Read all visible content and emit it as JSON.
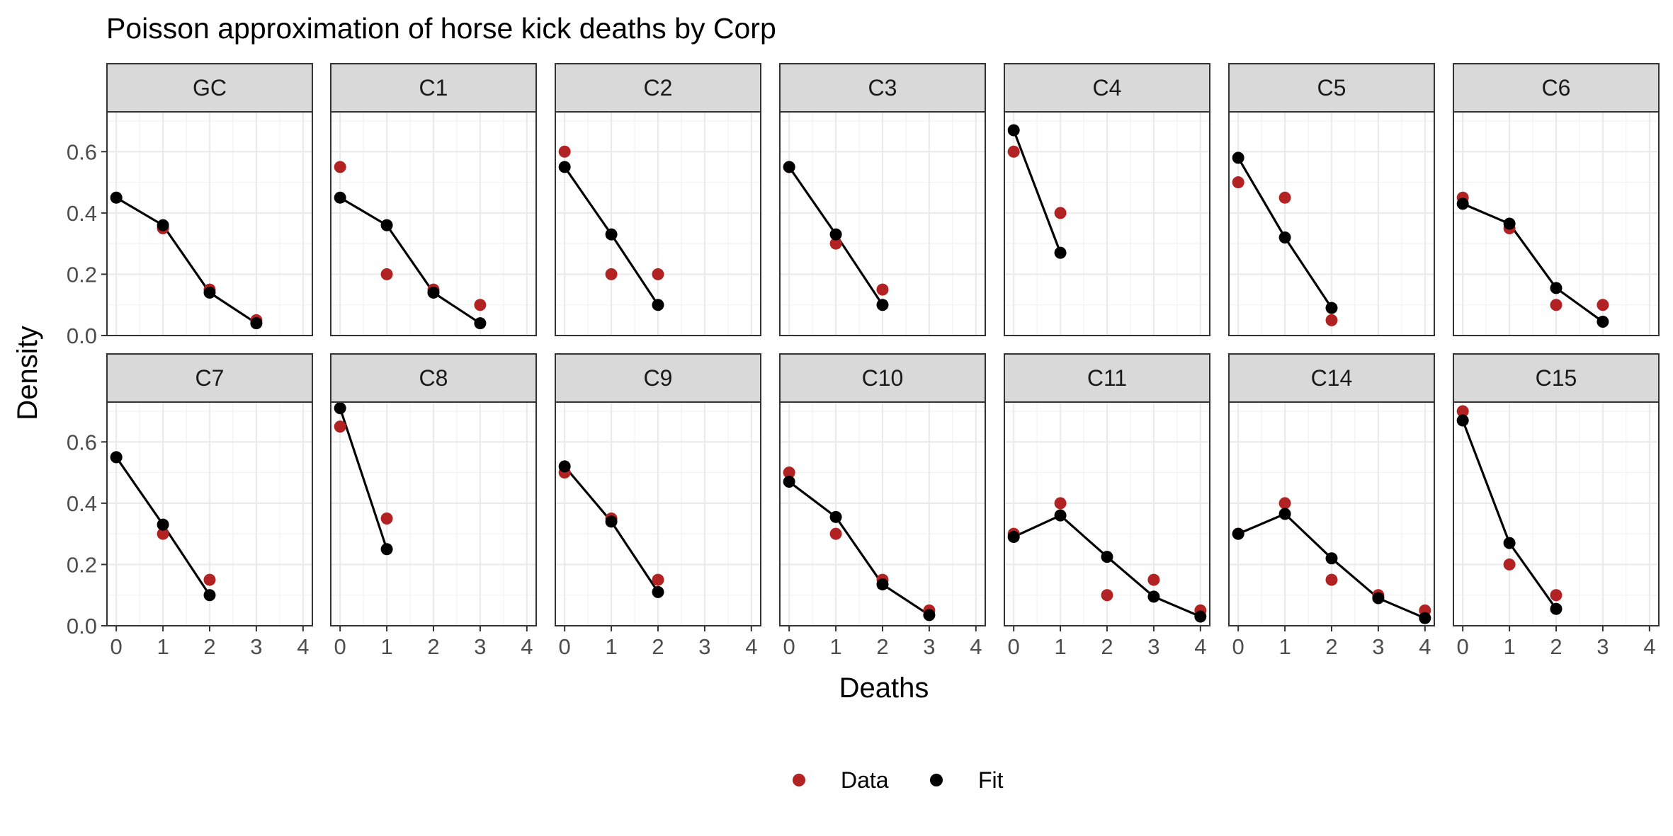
{
  "chart_data": {
    "type": "scatter",
    "title": "Poisson approximation of horse kick deaths by Corp",
    "xlabel": "Deaths",
    "ylabel": "Density",
    "xlim": [
      -0.2,
      4.2
    ],
    "ylim": [
      0,
      0.73
    ],
    "x_ticks": [
      "0",
      "1",
      "2",
      "3",
      "4"
    ],
    "y_ticks": [
      "0.0",
      "0.2",
      "0.4",
      "0.6"
    ],
    "grid": true,
    "legend_position": "bottom",
    "legend": [
      {
        "name": "Data",
        "color": "#b22222"
      },
      {
        "name": "Fit",
        "color": "#000000"
      }
    ],
    "facets": [
      {
        "label": "GC",
        "x": [
          0,
          1,
          2,
          3
        ],
        "data": [
          0.45,
          0.35,
          0.15,
          0.05
        ],
        "fit": [
          0.45,
          0.36,
          0.14,
          0.04
        ]
      },
      {
        "label": "C1",
        "x": [
          0,
          1,
          2,
          3
        ],
        "data": [
          0.55,
          0.2,
          0.15,
          0.1
        ],
        "fit": [
          0.45,
          0.36,
          0.14,
          0.04
        ]
      },
      {
        "label": "C2",
        "x": [
          0,
          1,
          2
        ],
        "data": [
          0.6,
          0.2,
          0.2
        ],
        "fit": [
          0.55,
          0.33,
          0.1
        ]
      },
      {
        "label": "C3",
        "x": [
          0,
          1,
          2
        ],
        "data": [
          0.55,
          0.3,
          0.15
        ],
        "fit": [
          0.55,
          0.33,
          0.1
        ]
      },
      {
        "label": "C4",
        "x": [
          0,
          1
        ],
        "data": [
          0.6,
          0.4
        ],
        "fit": [
          0.67,
          0.27
        ]
      },
      {
        "label": "C5",
        "x": [
          0,
          1,
          2
        ],
        "data": [
          0.5,
          0.45,
          0.05
        ],
        "fit": [
          0.58,
          0.32,
          0.09
        ]
      },
      {
        "label": "C6",
        "x": [
          0,
          1,
          2,
          3
        ],
        "data": [
          0.45,
          0.35,
          0.1,
          0.1
        ],
        "fit": [
          0.43,
          0.365,
          0.155,
          0.045
        ]
      },
      {
        "label": "C7",
        "x": [
          0,
          1,
          2
        ],
        "data": [
          0.55,
          0.3,
          0.15
        ],
        "fit": [
          0.55,
          0.33,
          0.1
        ]
      },
      {
        "label": "C8",
        "x": [
          0,
          1
        ],
        "data": [
          0.65,
          0.35
        ],
        "fit": [
          0.71,
          0.25
        ]
      },
      {
        "label": "C9",
        "x": [
          0,
          1,
          2
        ],
        "data": [
          0.5,
          0.35,
          0.15
        ],
        "fit": [
          0.52,
          0.34,
          0.11
        ]
      },
      {
        "label": "C10",
        "x": [
          0,
          1,
          2,
          3
        ],
        "data": [
          0.5,
          0.3,
          0.15,
          0.05
        ],
        "fit": [
          0.47,
          0.355,
          0.135,
          0.035
        ]
      },
      {
        "label": "C11",
        "x": [
          0,
          1,
          2,
          3,
          4
        ],
        "data": [
          0.3,
          0.4,
          0.1,
          0.15,
          0.05
        ],
        "fit": [
          0.29,
          0.36,
          0.225,
          0.095,
          0.03
        ]
      },
      {
        "label": "C14",
        "x": [
          0,
          1,
          2,
          3,
          4
        ],
        "data": [
          0.3,
          0.4,
          0.15,
          0.1,
          0.05
        ],
        "fit": [
          0.3,
          0.365,
          0.22,
          0.09,
          0.025
        ]
      },
      {
        "label": "C15",
        "x": [
          0,
          1,
          2
        ],
        "data": [
          0.7,
          0.2,
          0.1
        ],
        "fit": [
          0.67,
          0.27,
          0.055
        ]
      }
    ]
  }
}
